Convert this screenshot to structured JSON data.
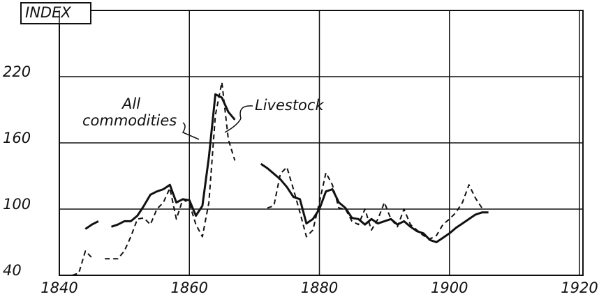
{
  "chart_data": {
    "type": "line",
    "title": "INDEX",
    "x": [
      1840,
      1841,
      1842,
      1843,
      1844,
      1845,
      1846,
      1847,
      1848,
      1849,
      1850,
      1851,
      1852,
      1853,
      1854,
      1855,
      1856,
      1857,
      1858,
      1859,
      1860,
      1861,
      1862,
      1863,
      1864,
      1865,
      1866,
      1867,
      1868,
      1869,
      1870,
      1871,
      1872,
      1873,
      1874,
      1875,
      1876,
      1877,
      1878,
      1879,
      1880,
      1881,
      1882,
      1883,
      1884,
      1885,
      1886,
      1887,
      1888,
      1889,
      1890,
      1891,
      1892,
      1893,
      1894,
      1895,
      1896,
      1897,
      1898,
      1899,
      1900,
      1901,
      1902,
      1903,
      1904,
      1905,
      1906
    ],
    "series": [
      {
        "name": "All commodities",
        "color": "#111111",
        "style": "solid",
        "values": [
          null,
          null,
          null,
          null,
          82,
          86,
          89,
          null,
          84,
          86,
          89,
          89,
          94,
          103,
          113,
          116,
          118,
          122,
          106,
          109,
          108,
          94,
          103,
          147,
          204,
          201,
          188,
          181,
          null,
          null,
          null,
          141,
          137,
          132,
          127,
          120,
          111,
          109,
          87,
          91,
          100,
          116,
          118,
          106,
          101,
          92,
          91,
          86,
          91,
          87,
          89,
          91,
          86,
          89,
          84,
          80,
          78,
          72,
          70,
          74,
          78,
          83,
          87,
          91,
          95,
          97,
          97
        ]
      },
      {
        "name": "Livestock",
        "color": "#111111",
        "style": "dashed",
        "values": [
          null,
          null,
          40,
          42,
          62,
          56,
          null,
          55,
          55,
          55,
          62,
          75,
          91,
          92,
          86,
          100,
          106,
          119,
          91,
          109,
          105,
          86,
          75,
          106,
          185,
          215,
          163,
          144,
          null,
          null,
          null,
          null,
          101,
          103,
          132,
          138,
          118,
          97,
          75,
          81,
          106,
          133,
          122,
          101,
          100,
          89,
          86,
          100,
          81,
          91,
          106,
          91,
          84,
          100,
          86,
          81,
          76,
          73,
          76,
          86,
          91,
          97,
          106,
          122,
          110,
          101,
          null
        ]
      }
    ],
    "xlim": [
      1840,
      1920
    ],
    "xticks": [
      1840,
      1860,
      1880,
      1900,
      1920
    ],
    "ylim": [
      40,
      280
    ],
    "yticks": [
      40,
      100,
      160,
      220
    ],
    "grid": true
  }
}
